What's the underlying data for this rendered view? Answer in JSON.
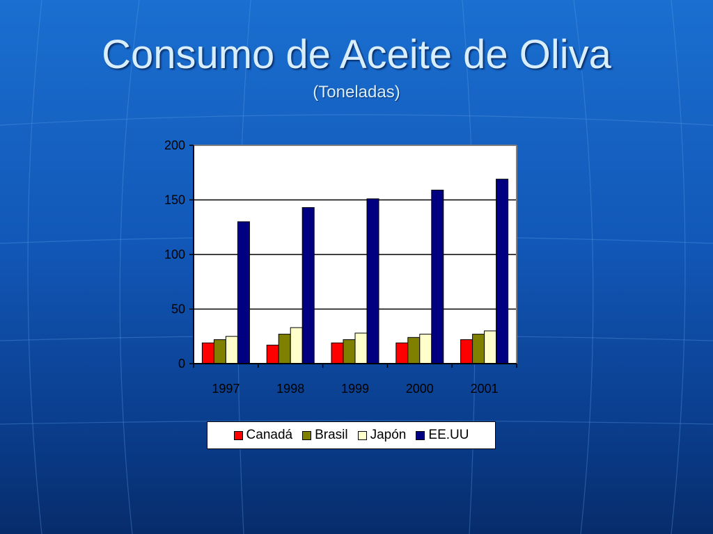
{
  "slide": {
    "title": "Consumo de Aceite de Oliva",
    "subtitle": "(Toneladas)"
  },
  "chart_data": {
    "type": "bar",
    "categories": [
      "1997",
      "1998",
      "1999",
      "2000",
      "2001"
    ],
    "series": [
      {
        "name": "Canadá",
        "color": "#ff0000",
        "values": [
          19,
          17,
          19,
          19,
          22
        ]
      },
      {
        "name": "Brasil",
        "color": "#808000",
        "values": [
          22,
          27,
          22,
          24,
          27
        ]
      },
      {
        "name": "Japón",
        "color": "#ffffcc",
        "values": [
          25,
          33,
          28,
          27,
          30
        ]
      },
      {
        "name": "EE.UU",
        "color": "#000080",
        "values": [
          130,
          143,
          151,
          159,
          169
        ]
      }
    ],
    "ylim": [
      0,
      200
    ],
    "yticks": [
      "0",
      "50",
      "100",
      "150",
      "200"
    ],
    "grid": true,
    "legend_position": "bottom",
    "xlabel": "",
    "ylabel": ""
  }
}
